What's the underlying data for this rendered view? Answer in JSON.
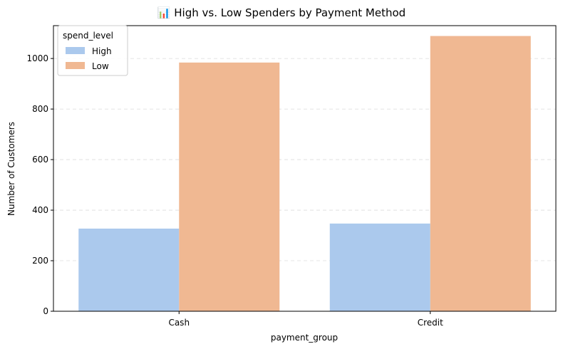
{
  "chart_data": {
    "type": "bar",
    "title": "📊 High vs. Low Spenders by Payment Method",
    "xlabel": "payment_group",
    "ylabel": "Number of Customers",
    "categories": [
      "Cash",
      "Credit"
    ],
    "series": [
      {
        "name": "High",
        "values": [
          327,
          347
        ],
        "color": "#abc9ed"
      },
      {
        "name": "Low",
        "values": [
          984,
          1089
        ],
        "color": "#f0b892"
      }
    ],
    "ylim": [
      0,
      1130
    ],
    "yticks": [
      0,
      200,
      400,
      600,
      800,
      1000
    ],
    "grid": "y-dashed",
    "legend": {
      "title": "spend_level",
      "placement": "top-left"
    }
  }
}
